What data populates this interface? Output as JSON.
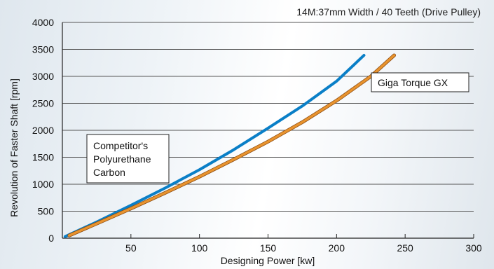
{
  "chart_data": {
    "type": "line",
    "title": "14M:37mm Width / 40 Teeth (Drive Pulley)",
    "xlabel": "Designing Power [kw]",
    "ylabel": "Revolution of Faster Shaft [rpm]",
    "xlim": [
      0,
      300
    ],
    "ylim": [
      0,
      4000
    ],
    "xticks": [
      50,
      100,
      150,
      200,
      250,
      300
    ],
    "yticks": [
      0,
      500,
      1000,
      1500,
      2000,
      2500,
      3000,
      3500,
      4000
    ],
    "grid": "horizontal",
    "series": [
      {
        "name": "Competitor's Polyurethane Carbon",
        "color": "#0a7fc7",
        "points": [
          [
            2,
            30
          ],
          [
            25,
            300
          ],
          [
            50,
            610
          ],
          [
            75,
            930
          ],
          [
            100,
            1270
          ],
          [
            125,
            1640
          ],
          [
            150,
            2040
          ],
          [
            175,
            2450
          ],
          [
            200,
            2910
          ],
          [
            220,
            3390
          ]
        ]
      },
      {
        "name": "Giga Torque GX",
        "color": "#e8932e",
        "points": [
          [
            5,
            50
          ],
          [
            25,
            270
          ],
          [
            50,
            550
          ],
          [
            75,
            840
          ],
          [
            100,
            1140
          ],
          [
            125,
            1460
          ],
          [
            150,
            1790
          ],
          [
            175,
            2150
          ],
          [
            200,
            2550
          ],
          [
            225,
            3000
          ],
          [
            242,
            3390
          ]
        ]
      }
    ],
    "labels": {
      "competitor": [
        "Competitor's",
        "Polyurethane",
        "Carbon"
      ],
      "gx": "Giga Torque GX"
    }
  }
}
